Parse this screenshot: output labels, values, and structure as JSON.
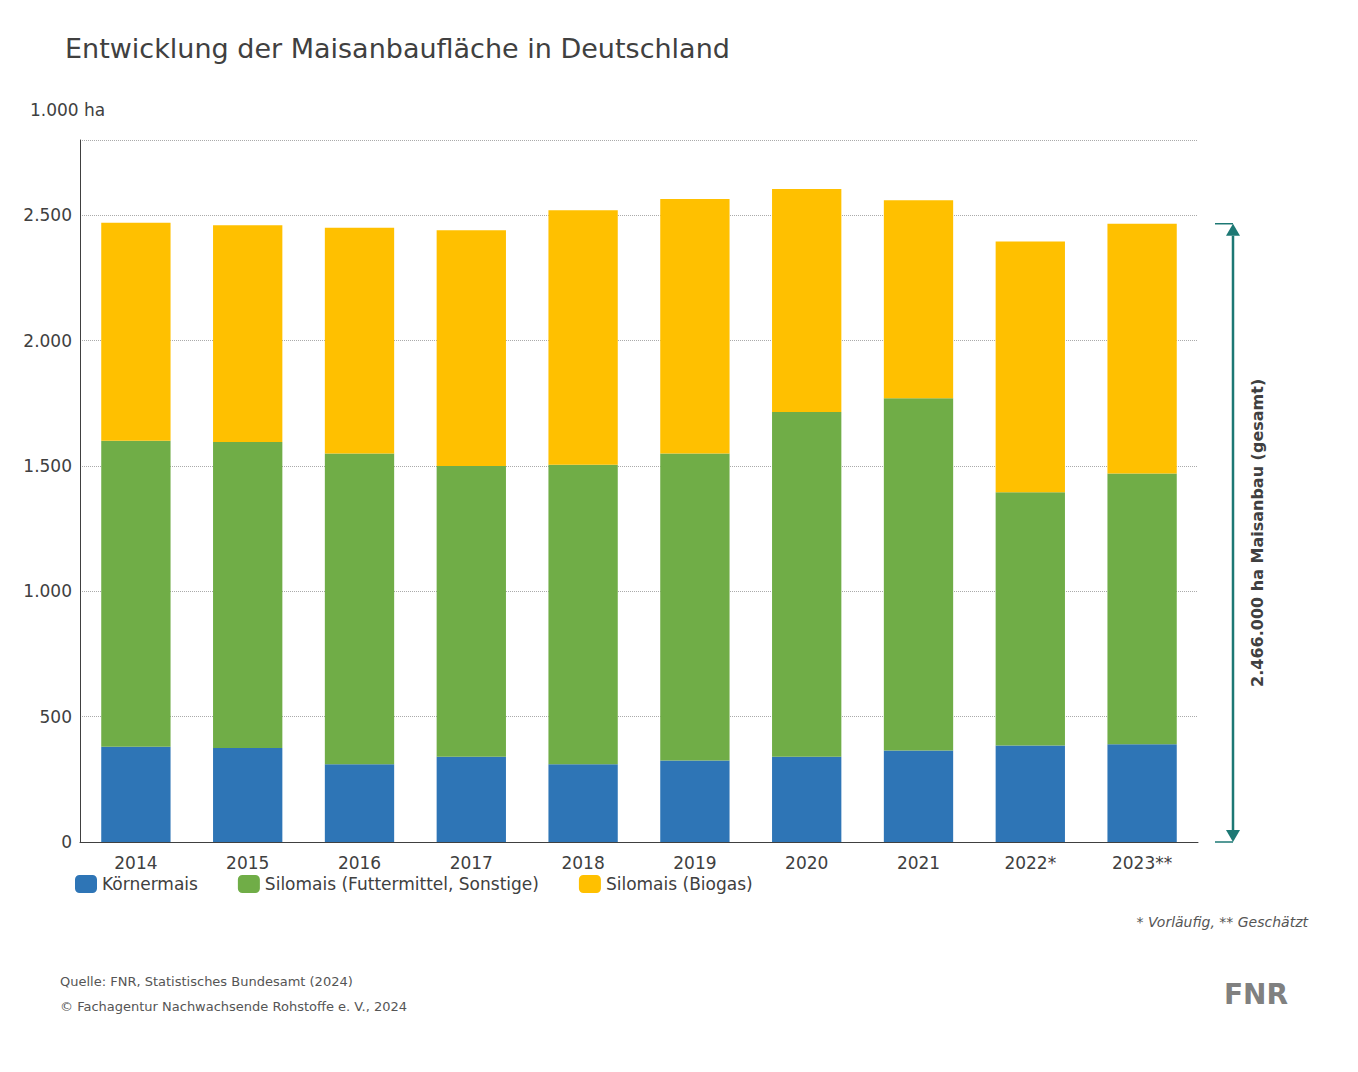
{
  "chart_data": {
    "type": "bar",
    "stacked": true,
    "title": "Entwicklung der Maisanbaufläche in Deutschland",
    "y_label": "1.000 ha",
    "categories": [
      "2014",
      "2015",
      "2016",
      "2017",
      "2018",
      "2019",
      "2020",
      "2021",
      "2022*",
      "2023**"
    ],
    "series": [
      {
        "name": "Körnermais",
        "color": "#2E75B6",
        "values": [
          380,
          375,
          310,
          340,
          310,
          325,
          340,
          365,
          385,
          390
        ]
      },
      {
        "name": "Silomais (Futtermittel, Sonstige)",
        "color": "#70AD47",
        "values": [
          1220,
          1220,
          1240,
          1160,
          1195,
          1225,
          1375,
          1405,
          1010,
          1080
        ]
      },
      {
        "name": "Silomais (Biogas)",
        "color": "#FFC000",
        "values": [
          870,
          865,
          900,
          940,
          1015,
          1015,
          890,
          790,
          1000,
          996
        ]
      }
    ],
    "ylim": [
      0,
      2800
    ],
    "yticks": [
      0,
      500,
      {
        "value": 1000,
        "label": "1.000"
      },
      {
        "value": 1500,
        "label": "1.500"
      },
      {
        "value": 2000,
        "label": "2.000"
      },
      {
        "value": 2500,
        "label": "2.500"
      }
    ],
    "grid": true,
    "legend": "bottom",
    "annotations": [
      {
        "text": "2.466.000 ha Maisanbau (gesamt)",
        "y": [
          0,
          2466
        ],
        "color": "#1D7874"
      }
    ],
    "footnote": "* Vorläufig, ** Geschätzt",
    "source": [
      "Quelle: FNR, Statistisches Bundesamt (2024)",
      "© Fachagentur Nachwachsende Rohstoffe e. V., 2024"
    ],
    "logo_text": "FNR"
  }
}
